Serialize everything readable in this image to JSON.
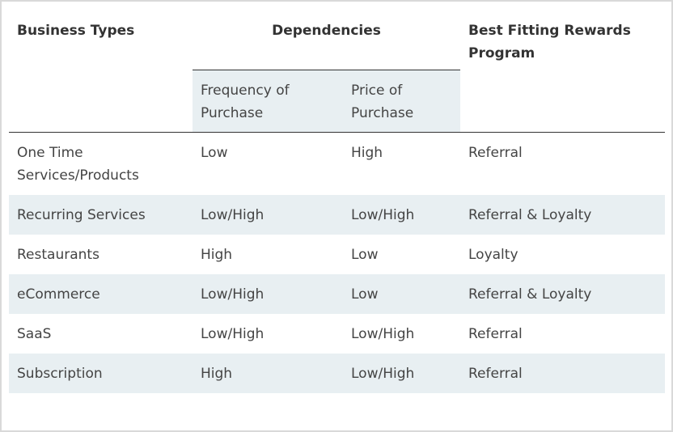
{
  "headers": {
    "business_types": "Business Types",
    "dependencies": "Dependencies",
    "best_fitting_line1": "Best Fitting Rewards",
    "best_fitting_line2": "Program",
    "frequency_line1": "Frequency of",
    "frequency_line2": "Purchase",
    "price_line1": "Price of",
    "price_line2": "Purchase"
  },
  "rows": [
    {
      "business_line1": "One Time",
      "business_line2": "Services/Products",
      "frequency": "Low",
      "price": "High",
      "program": "Referral"
    },
    {
      "business_line1": "Recurring Services",
      "business_line2": "",
      "frequency": "Low/High",
      "price": "Low/High",
      "program": "Referral & Loyalty"
    },
    {
      "business_line1": "Restaurants",
      "business_line2": "",
      "frequency": "High",
      "price": "Low",
      "program": "Loyalty"
    },
    {
      "business_line1": "eCommerce",
      "business_line2": "",
      "frequency": "Low/High",
      "price": "Low",
      "program": "Referral & Loyalty"
    },
    {
      "business_line1": "SaaS",
      "business_line2": "",
      "frequency": "Low/High",
      "price": "Low/High",
      "program": "Referral"
    },
    {
      "business_line1": "Subscription",
      "business_line2": "",
      "frequency": "High",
      "price": "Low/High",
      "program": "Referral"
    }
  ],
  "colors": {
    "border": "#d9d9d9",
    "shade": "#e8eff2",
    "rule": "#333333",
    "text": "#444444"
  }
}
